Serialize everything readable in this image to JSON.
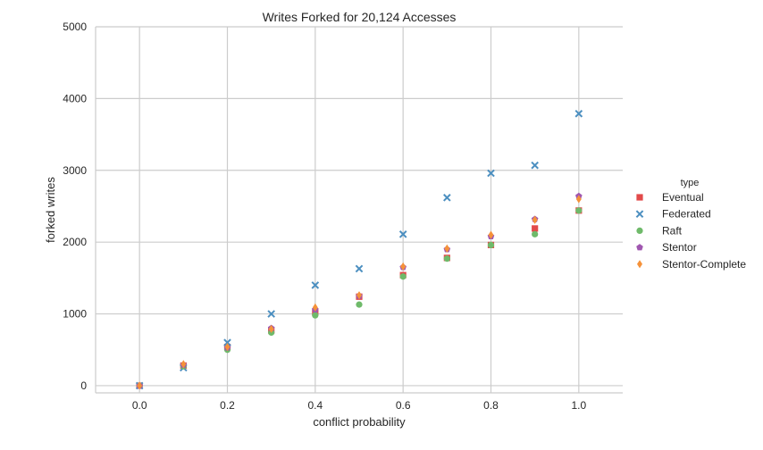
{
  "chart_data": {
    "type": "scatter",
    "title": "Writes Forked for 20,124 Accesses",
    "xlabel": "conflict probability",
    "ylabel": "forked writes",
    "xlim": [
      -0.1,
      1.1
    ],
    "ylim": [
      -100,
      5000
    ],
    "x_ticks": [
      "0.0",
      "0.2",
      "0.4",
      "0.6",
      "0.8",
      "1.0"
    ],
    "y_ticks": [
      "0",
      "1000",
      "2000",
      "3000",
      "4000",
      "5000"
    ],
    "grid": true,
    "legend": {
      "title": "type",
      "placement": "right"
    },
    "x": [
      0.0,
      0.1,
      0.2,
      0.3,
      0.4,
      0.5,
      0.6,
      0.7,
      0.8,
      0.9,
      1.0
    ],
    "series": [
      {
        "name": "Eventual",
        "color": "#e24a4a",
        "marker": "square",
        "values": [
          0,
          280,
          540,
          770,
          1020,
          1240,
          1540,
          1780,
          1960,
          2190,
          2440
        ]
      },
      {
        "name": "Federated",
        "color": "#4c8fc0",
        "marker": "x",
        "values": [
          0,
          250,
          600,
          1000,
          1400,
          1630,
          2110,
          2620,
          2960,
          3070,
          3790
        ]
      },
      {
        "name": "Raft",
        "color": "#6fba6a",
        "marker": "circle",
        "values": [
          0,
          270,
          500,
          740,
          980,
          1130,
          1520,
          1770,
          1960,
          2110,
          2440
        ]
      },
      {
        "name": "Stentor",
        "color": "#a057b0",
        "marker": "pentagon",
        "values": [
          0,
          290,
          530,
          800,
          1060,
          1250,
          1650,
          1900,
          2080,
          2320,
          2640
        ]
      },
      {
        "name": "Stentor-Complete",
        "color": "#f5923a",
        "marker": "diamond",
        "values": [
          0,
          300,
          540,
          790,
          1090,
          1260,
          1660,
          1910,
          2100,
          2310,
          2600
        ]
      }
    ]
  }
}
